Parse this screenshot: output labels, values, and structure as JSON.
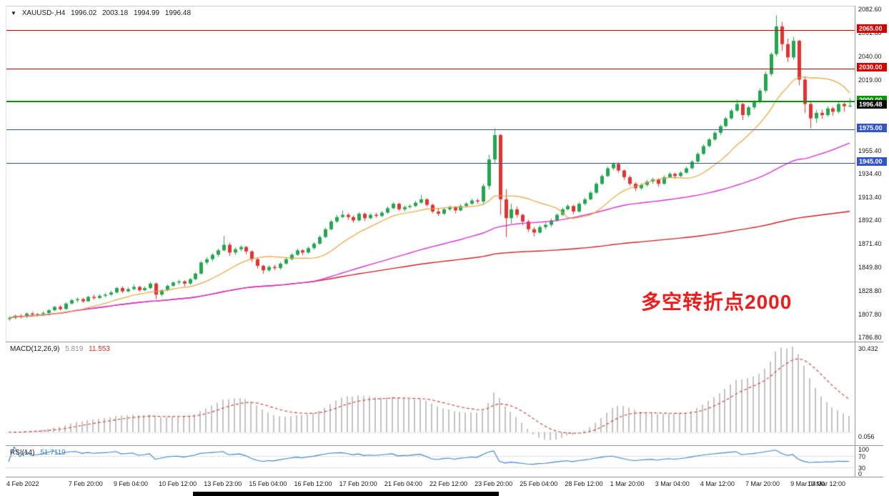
{
  "header": {
    "dropdown_icon": "▼",
    "symbol": "XAUUSD-,H4",
    "open": "1996.02",
    "high": "2003.18",
    "low": "1994.99",
    "close": "1996.48"
  },
  "annotation": {
    "text": "多空转折点2000",
    "color": "#ee1c1c"
  },
  "price_axis": {
    "ticks": [
      {
        "label": "2082.60",
        "price": 2082.6
      },
      {
        "label": "2061.60",
        "price": 2061.6
      },
      {
        "label": "2040.00",
        "price": 2040.0
      },
      {
        "label": "2019.00",
        "price": 2019.0
      },
      {
        "label": "1955.40",
        "price": 1955.4
      },
      {
        "label": "1934.40",
        "price": 1934.4
      },
      {
        "label": "1913.40",
        "price": 1913.4
      },
      {
        "label": "1892.40",
        "price": 1892.4
      },
      {
        "label": "1871.40",
        "price": 1871.4
      },
      {
        "label": "1849.80",
        "price": 1849.8
      },
      {
        "label": "1828.80",
        "price": 1828.8
      },
      {
        "label": "1807.80",
        "price": 1807.8
      },
      {
        "label": "1786.80",
        "price": 1786.8
      }
    ]
  },
  "current_price": {
    "label": "1996.48",
    "price": 1996.48,
    "bg": "#0a0a0a",
    "fg": "#ffffff"
  },
  "indicators": {
    "macd": {
      "label": "MACD(12,26,9)",
      "value_main": "5.819",
      "value_signal": "11.553",
      "fast": 12,
      "slow": 26,
      "signal": 9,
      "axis_max": "30.432",
      "axis_min": "0.056",
      "hist_color": "#c2c2c2",
      "signal_color": "#cc3b3b"
    },
    "rsi": {
      "label": "RSI(14)",
      "value": "51.7119",
      "period": 14,
      "axis_labels": [
        "100",
        "70",
        "30",
        "0"
      ],
      "levels": [
        70,
        30
      ],
      "line_color": "#3d85c6"
    }
  },
  "chart_data": {
    "type": "candlestick",
    "symbol": "XAUUSD",
    "timeframe": "H4",
    "ohlc_fields": [
      "open",
      "high",
      "low",
      "close"
    ],
    "y_range": [
      1783,
      2086
    ],
    "up_color": "#26a551",
    "down_color": "#e23333",
    "horizontal_lines": [
      {
        "price": 2065.0,
        "label": "2065.00",
        "color": "#d40000",
        "width": 1
      },
      {
        "price": 2030.0,
        "label": "2030.00",
        "color": "#d40000",
        "width": 1
      },
      {
        "price": 2000.0,
        "label": "2000.00",
        "color": "#009900",
        "width": 2
      },
      {
        "price": 1975.0,
        "label": "1975.00",
        "color": "#3355cc",
        "width": 1
      },
      {
        "price": 1945.0,
        "label": "1945.00",
        "color": "#3355cc",
        "width": 1
      }
    ],
    "overlays": [
      {
        "name": "ma-fast",
        "type": "sma",
        "period": 13,
        "color": "#e8a33d"
      },
      {
        "name": "ma-mid",
        "type": "sma",
        "period": 55,
        "color": "#d633d6"
      },
      {
        "name": "ma-slow",
        "type": "cumulative-mean",
        "color": "#cc2222"
      }
    ],
    "x_axis": {
      "labels": [
        {
          "i": 0,
          "text": "4 Feb 2022"
        },
        {
          "i": 11,
          "text": "7 Feb 20:00"
        },
        {
          "i": 19,
          "text": "9 Feb 04:00"
        },
        {
          "i": 27,
          "text": "10 Feb 12:00"
        },
        {
          "i": 35,
          "text": "13 Feb 23:00"
        },
        {
          "i": 43,
          "text": "15 Feb 04:00"
        },
        {
          "i": 51,
          "text": "16 Feb 12:00"
        },
        {
          "i": 59,
          "text": "17 Feb 20:00"
        },
        {
          "i": 67,
          "text": "21 Feb 04:00"
        },
        {
          "i": 75,
          "text": "22 Feb 12:00"
        },
        {
          "i": 83,
          "text": "23 Feb 20:00"
        },
        {
          "i": 91,
          "text": "25 Feb 04:00"
        },
        {
          "i": 99,
          "text": "28 Feb 12:00"
        },
        {
          "i": 107,
          "text": "1 Mar 20:00"
        },
        {
          "i": 115,
          "text": "3 Mar 04:00"
        },
        {
          "i": 123,
          "text": "4 Mar 12:00"
        },
        {
          "i": 131,
          "text": "7 Mar 20:00"
        },
        {
          "i": 139,
          "text": "9 Mar 04:00"
        },
        {
          "i": 147,
          "text": "10 Mar 12:00"
        }
      ]
    },
    "candles": [
      [
        1804,
        1806.5,
        1802.5,
        1805
      ],
      [
        1805,
        1808,
        1804,
        1807
      ],
      [
        1807,
        1808.5,
        1804.5,
        1806
      ],
      [
        1806,
        1810,
        1805,
        1809
      ],
      [
        1809,
        1810.5,
        1806.5,
        1808
      ],
      [
        1808,
        1809.5,
        1806,
        1808.5
      ],
      [
        1808.5,
        1811,
        1807,
        1809.5
      ],
      [
        1809.5,
        1813,
        1808.5,
        1812
      ],
      [
        1812,
        1816,
        1811,
        1815
      ],
      [
        1815,
        1816.5,
        1811.5,
        1813
      ],
      [
        1813,
        1819,
        1812.5,
        1818
      ],
      [
        1818,
        1822,
        1817,
        1821
      ],
      [
        1821,
        1823.5,
        1819,
        1822
      ],
      [
        1822,
        1823,
        1818.5,
        1820
      ],
      [
        1820,
        1825,
        1819.5,
        1824
      ],
      [
        1824,
        1826,
        1821.5,
        1823
      ],
      [
        1823,
        1826.5,
        1822,
        1825
      ],
      [
        1825,
        1827.5,
        1823.5,
        1826
      ],
      [
        1826,
        1829.5,
        1825,
        1828
      ],
      [
        1828,
        1833,
        1827,
        1832
      ],
      [
        1832,
        1833.5,
        1827.5,
        1829
      ],
      [
        1829,
        1832.5,
        1828,
        1831
      ],
      [
        1831,
        1835,
        1830,
        1833
      ],
      [
        1833,
        1834,
        1828.5,
        1830
      ],
      [
        1830,
        1833.5,
        1829,
        1832
      ],
      [
        1832,
        1837.5,
        1831,
        1836
      ],
      [
        1836,
        1837,
        1822,
        1826
      ],
      [
        1826,
        1831,
        1824.5,
        1830
      ],
      [
        1830,
        1835,
        1829,
        1834
      ],
      [
        1834,
        1838,
        1833,
        1837
      ],
      [
        1837,
        1839.5,
        1835,
        1838
      ],
      [
        1838,
        1839,
        1833.5,
        1836
      ],
      [
        1836,
        1841,
        1835,
        1840
      ],
      [
        1840,
        1846,
        1839,
        1845
      ],
      [
        1845,
        1856.5,
        1844,
        1855
      ],
      [
        1855,
        1860,
        1853,
        1858
      ],
      [
        1858,
        1863.5,
        1856,
        1862
      ],
      [
        1862,
        1867.5,
        1860,
        1866
      ],
      [
        1866,
        1879,
        1865,
        1871
      ],
      [
        1871,
        1873,
        1861,
        1864
      ],
      [
        1864,
        1868.5,
        1862,
        1867
      ],
      [
        1867,
        1870.5,
        1865,
        1869
      ],
      [
        1869,
        1870,
        1862.5,
        1865
      ],
      [
        1865,
        1866,
        1855.5,
        1858
      ],
      [
        1858,
        1859.5,
        1849.5,
        1852
      ],
      [
        1852,
        1853,
        1845,
        1848
      ],
      [
        1848,
        1852.5,
        1846.5,
        1851
      ],
      [
        1851,
        1853,
        1848,
        1850
      ],
      [
        1850,
        1855.5,
        1848.5,
        1854
      ],
      [
        1854,
        1859.5,
        1853,
        1858
      ],
      [
        1858,
        1863.5,
        1857,
        1862
      ],
      [
        1862,
        1867.5,
        1861,
        1866
      ],
      [
        1866,
        1867,
        1861.5,
        1864
      ],
      [
        1864,
        1869.5,
        1863,
        1868
      ],
      [
        1868,
        1873.5,
        1866.5,
        1872
      ],
      [
        1872,
        1879.5,
        1871,
        1878
      ],
      [
        1878,
        1886.5,
        1877,
        1885
      ],
      [
        1885,
        1893.5,
        1884,
        1892
      ],
      [
        1892,
        1898,
        1890.5,
        1896
      ],
      [
        1896,
        1902,
        1895,
        1898
      ],
      [
        1898,
        1899.5,
        1893.5,
        1896
      ],
      [
        1896,
        1897.5,
        1891,
        1893
      ],
      [
        1893,
        1900.5,
        1892,
        1899
      ],
      [
        1899,
        1900,
        1892.5,
        1895
      ],
      [
        1895,
        1899.5,
        1894,
        1898
      ],
      [
        1898,
        1899.8,
        1895.5,
        1897
      ],
      [
        1897,
        1901.5,
        1896,
        1900
      ],
      [
        1900,
        1905.5,
        1899,
        1904
      ],
      [
        1904,
        1909.5,
        1903,
        1908
      ],
      [
        1908,
        1909,
        1901.5,
        1903
      ],
      [
        1903,
        1906.5,
        1901,
        1905
      ],
      [
        1905,
        1907.5,
        1903.5,
        1906
      ],
      [
        1906,
        1910.5,
        1905,
        1909
      ],
      [
        1909,
        1916,
        1908,
        1912
      ],
      [
        1912,
        1913,
        1905.5,
        1907
      ],
      [
        1907,
        1908,
        1899.5,
        1901
      ],
      [
        1901,
        1903.5,
        1897,
        1899
      ],
      [
        1899,
        1904.5,
        1898,
        1903
      ],
      [
        1903,
        1906.5,
        1901.5,
        1905
      ],
      [
        1905,
        1906,
        1899.5,
        1902
      ],
      [
        1902,
        1907.5,
        1901,
        1906
      ],
      [
        1906,
        1909.5,
        1905,
        1908
      ],
      [
        1908,
        1912.5,
        1907,
        1911
      ],
      [
        1911,
        1912.5,
        1908,
        1910
      ],
      [
        1910,
        1926,
        1907,
        1924
      ],
      [
        1924,
        1952,
        1921,
        1948
      ],
      [
        1948,
        1976,
        1944,
        1970
      ],
      [
        1970,
        1971,
        1898,
        1912
      ],
      [
        1912,
        1921,
        1878,
        1895
      ],
      [
        1895,
        1908,
        1890,
        1903
      ],
      [
        1903,
        1905.5,
        1895.5,
        1898
      ],
      [
        1898,
        1899,
        1888.5,
        1892
      ],
      [
        1892,
        1893.5,
        1882.5,
        1885
      ],
      [
        1885,
        1887,
        1878.5,
        1882
      ],
      [
        1882,
        1888.5,
        1881,
        1887
      ],
      [
        1887,
        1891,
        1885,
        1889
      ],
      [
        1889,
        1894.5,
        1887,
        1893
      ],
      [
        1893,
        1899.5,
        1892,
        1898
      ],
      [
        1898,
        1904.5,
        1897,
        1903
      ],
      [
        1903,
        1907.5,
        1902,
        1906
      ],
      [
        1906,
        1907,
        1898.5,
        1901
      ],
      [
        1901,
        1909.5,
        1900,
        1908
      ],
      [
        1908,
        1913.5,
        1906.5,
        1912
      ],
      [
        1912,
        1919.5,
        1911,
        1918
      ],
      [
        1918,
        1927.5,
        1917,
        1926
      ],
      [
        1926,
        1934.5,
        1925,
        1933
      ],
      [
        1933,
        1941.5,
        1932,
        1940
      ],
      [
        1940,
        1945.5,
        1938.5,
        1944
      ],
      [
        1944,
        1945.5,
        1936,
        1938
      ],
      [
        1938,
        1939,
        1929.5,
        1932
      ],
      [
        1932,
        1933.5,
        1924,
        1926
      ],
      [
        1926,
        1927.5,
        1919.5,
        1922
      ],
      [
        1922,
        1926.5,
        1920.5,
        1925
      ],
      [
        1925,
        1929.5,
        1923.5,
        1928
      ],
      [
        1928,
        1931.5,
        1926,
        1930
      ],
      [
        1930,
        1931,
        1923.5,
        1926
      ],
      [
        1926,
        1933.5,
        1925,
        1932
      ],
      [
        1932,
        1936.5,
        1931,
        1935
      ],
      [
        1935,
        1936,
        1930.5,
        1933
      ],
      [
        1933,
        1937.5,
        1932,
        1936
      ],
      [
        1936,
        1941.5,
        1935,
        1940
      ],
      [
        1940,
        1947.5,
        1939,
        1946
      ],
      [
        1946,
        1954.5,
        1945,
        1953
      ],
      [
        1953,
        1961.5,
        1952,
        1960
      ],
      [
        1960,
        1967.5,
        1959,
        1966
      ],
      [
        1966,
        1973.5,
        1964.5,
        1972
      ],
      [
        1972,
        1979.5,
        1970,
        1978
      ],
      [
        1978,
        1986.5,
        1977,
        1985
      ],
      [
        1985,
        1993.5,
        1984,
        1992
      ],
      [
        1992,
        2002,
        1991,
        1998
      ],
      [
        1998,
        1999,
        1983.5,
        1988
      ],
      [
        1988,
        1996.5,
        1986,
        1995
      ],
      [
        1995,
        2001.5,
        1993,
        2000
      ],
      [
        2000,
        2012,
        1998.5,
        2010
      ],
      [
        2010,
        2027.5,
        2008,
        2025
      ],
      [
        2025,
        2044.5,
        2023,
        2043
      ],
      [
        2043,
        2078,
        2041,
        2068
      ],
      [
        2068,
        2072,
        2046,
        2052
      ],
      [
        2052,
        2057,
        2036,
        2040
      ],
      [
        2040,
        2058.5,
        2038,
        2055
      ],
      [
        2055,
        2056,
        2015,
        2020
      ],
      [
        2020,
        2022,
        1990,
        1998
      ],
      [
        1998,
        2000,
        1976,
        1985
      ],
      [
        1985,
        1992.5,
        1981,
        1990
      ],
      [
        1990,
        1993,
        1984.5,
        1988
      ],
      [
        1988,
        1996,
        1986.5,
        1994
      ],
      [
        1994,
        1995.5,
        1987.5,
        1991
      ],
      [
        1991,
        2000,
        1989.5,
        1998
      ],
      [
        1998,
        1999.5,
        1991,
        1996
      ],
      [
        1996.02,
        2003.18,
        1994.99,
        1996.48
      ]
    ]
  }
}
